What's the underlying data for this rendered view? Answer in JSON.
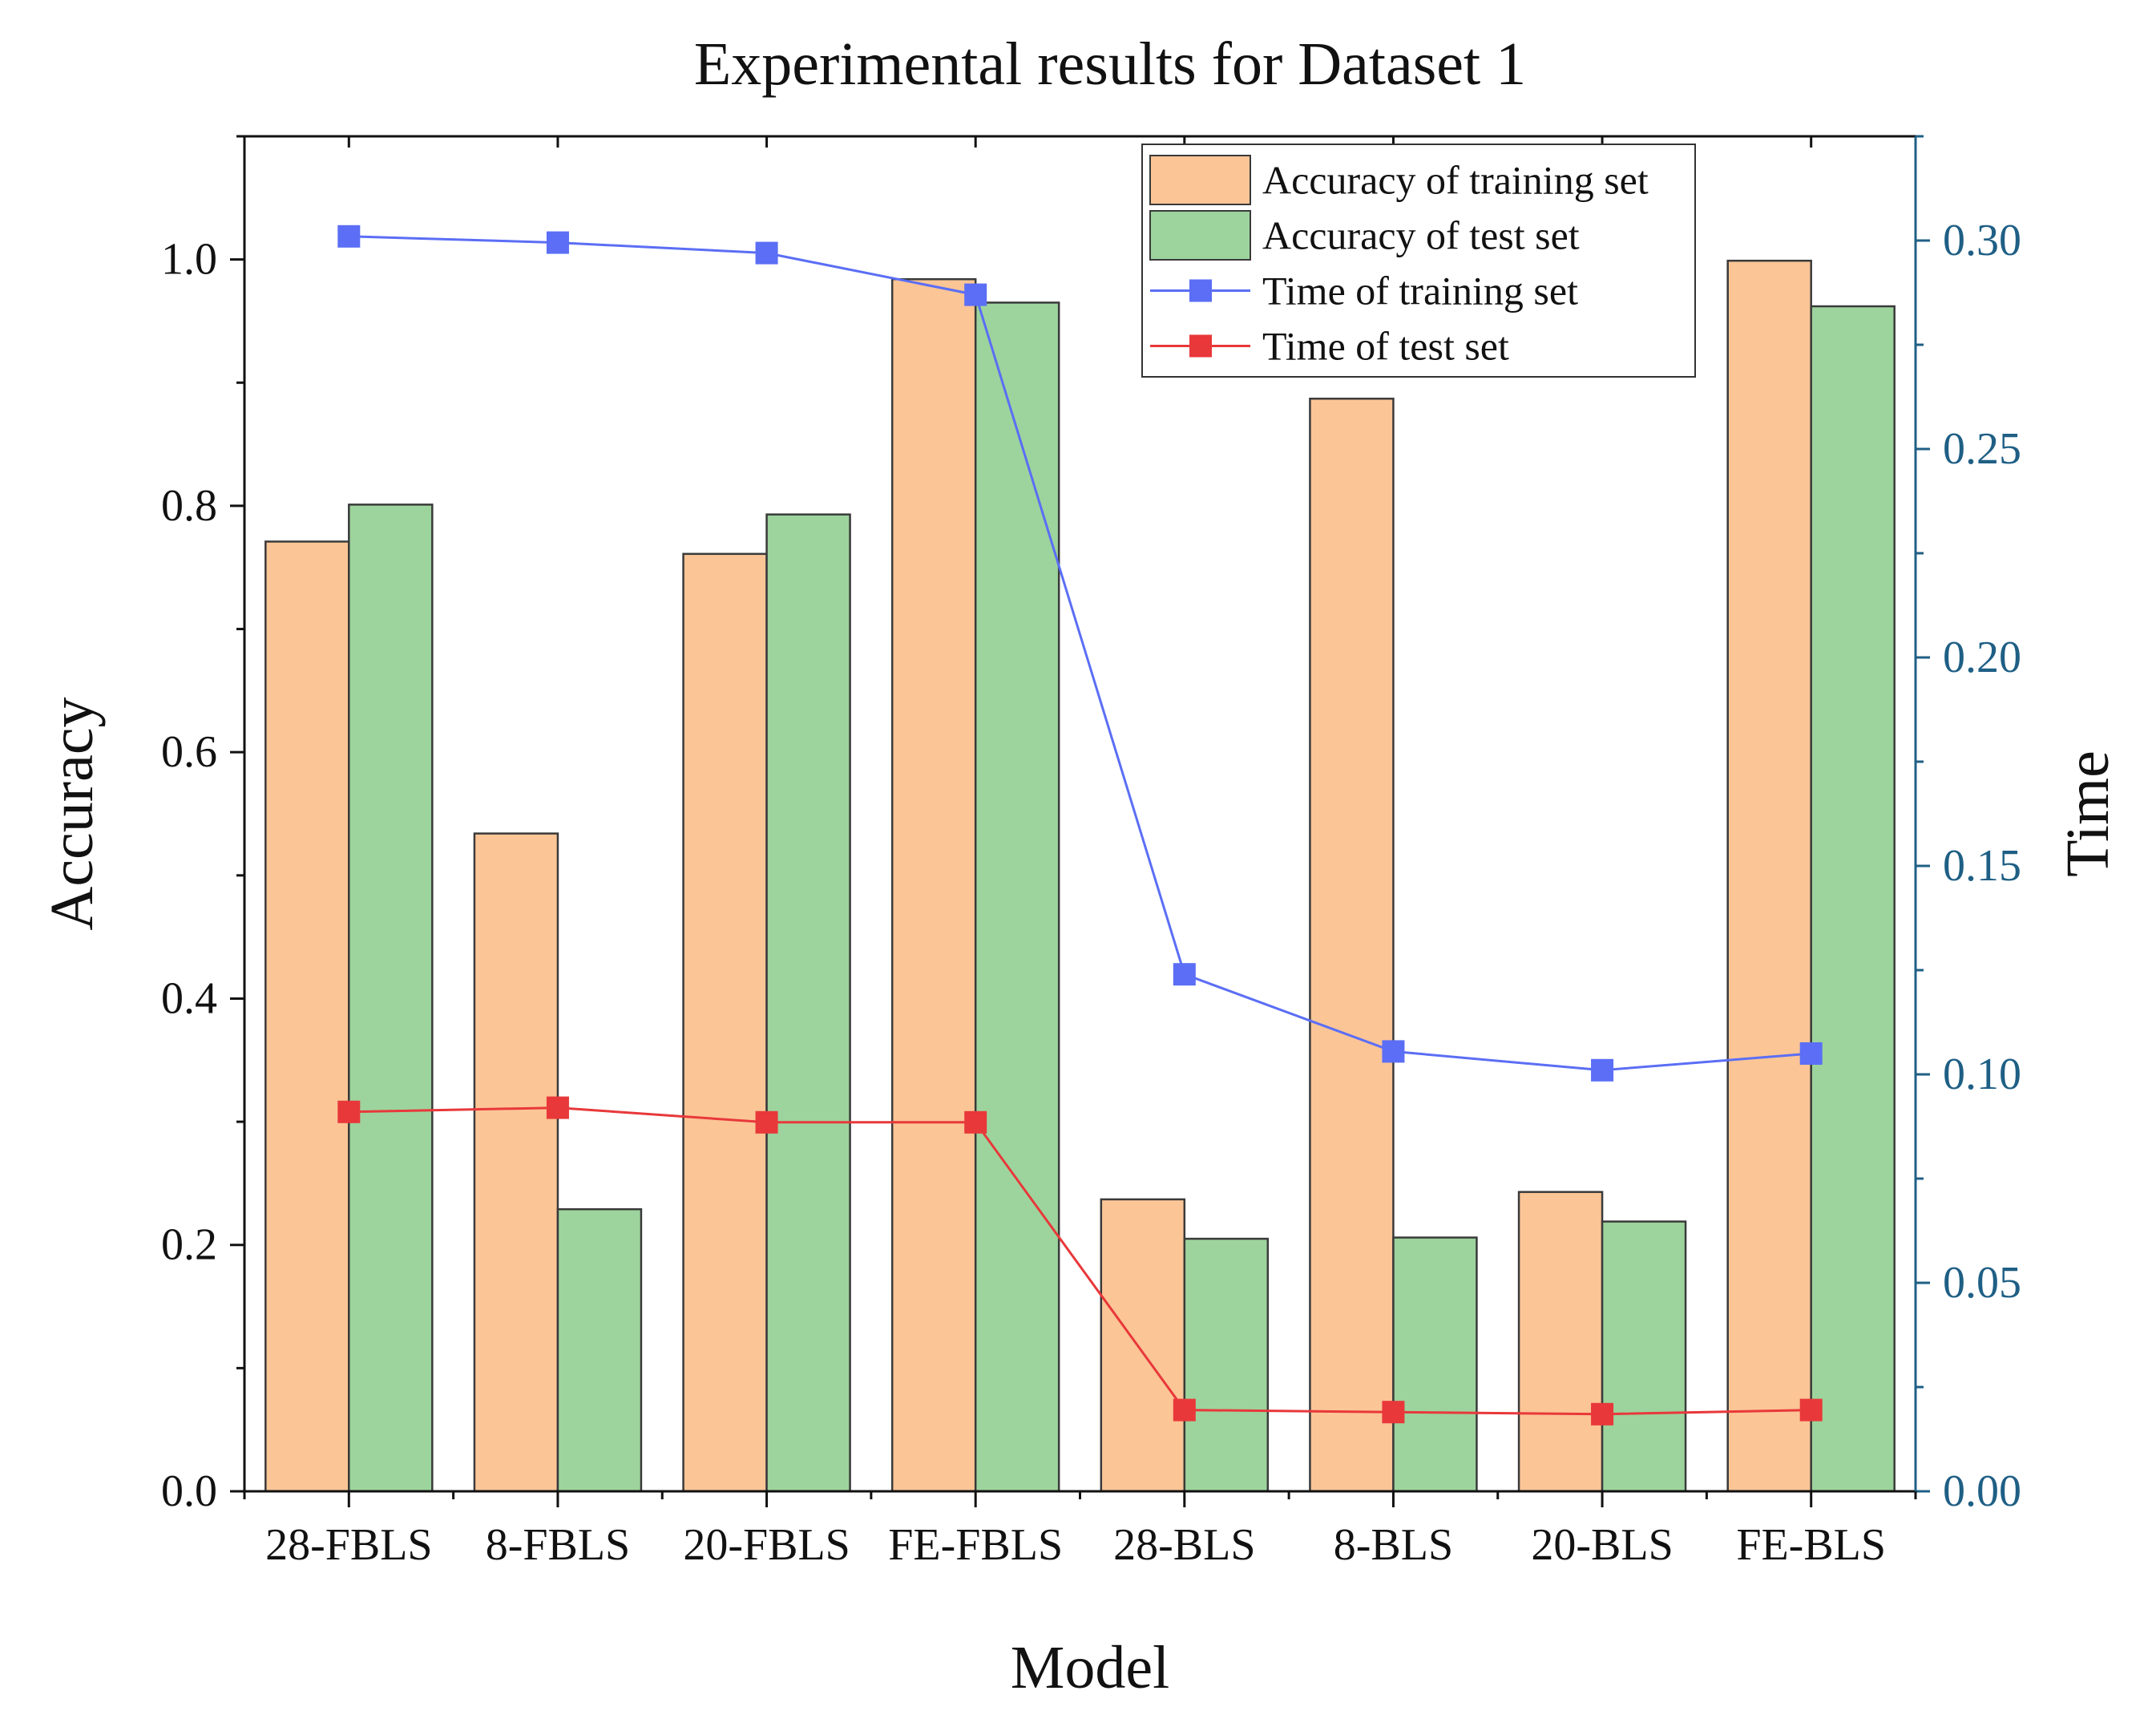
{
  "chart_data": {
    "type": "bar",
    "title": "Experimental results for Dataset 1",
    "xlabel": "Model",
    "ylabel": "Accuracy",
    "y2label": "Time",
    "categories": [
      "28-FBLS",
      "8-FBLS",
      "20-FBLS",
      "FE-FBLS",
      "28-BLS",
      "8-BLS",
      "20-BLS",
      "FE-BLS"
    ],
    "ylim": [
      0,
      1.1
    ],
    "y2lim": [
      0,
      0.325
    ],
    "yticks": [
      "0.0",
      "0.2",
      "0.4",
      "0.6",
      "0.8",
      "1.0"
    ],
    "y2ticks": [
      "0.00",
      "0.05",
      "0.10",
      "0.15",
      "0.20",
      "0.25",
      "0.30"
    ],
    "series": [
      {
        "name": "Accuracy of training set",
        "kind": "bar",
        "axis": "left",
        "color": "#fbc596",
        "values": [
          0.771,
          0.534,
          0.761,
          0.984,
          0.237,
          0.887,
          0.243,
          0.999
        ]
      },
      {
        "name": "Accuracy of test set",
        "kind": "bar",
        "axis": "left",
        "color": "#9dd49d",
        "values": [
          0.801,
          0.229,
          0.793,
          0.965,
          0.205,
          0.206,
          0.219,
          0.962
        ]
      },
      {
        "name": "Time of training set",
        "kind": "line",
        "axis": "right",
        "color": "#5b6ef5",
        "values": [
          0.301,
          0.2995,
          0.297,
          0.287,
          0.124,
          0.1055,
          0.101,
          0.105
        ]
      },
      {
        "name": "Time of test set",
        "kind": "line",
        "axis": "right",
        "color": "#e8383a",
        "values": [
          0.091,
          0.092,
          0.0885,
          0.0885,
          0.0195,
          0.019,
          0.0185,
          0.0195
        ]
      }
    ],
    "legend_position": "top-right"
  }
}
